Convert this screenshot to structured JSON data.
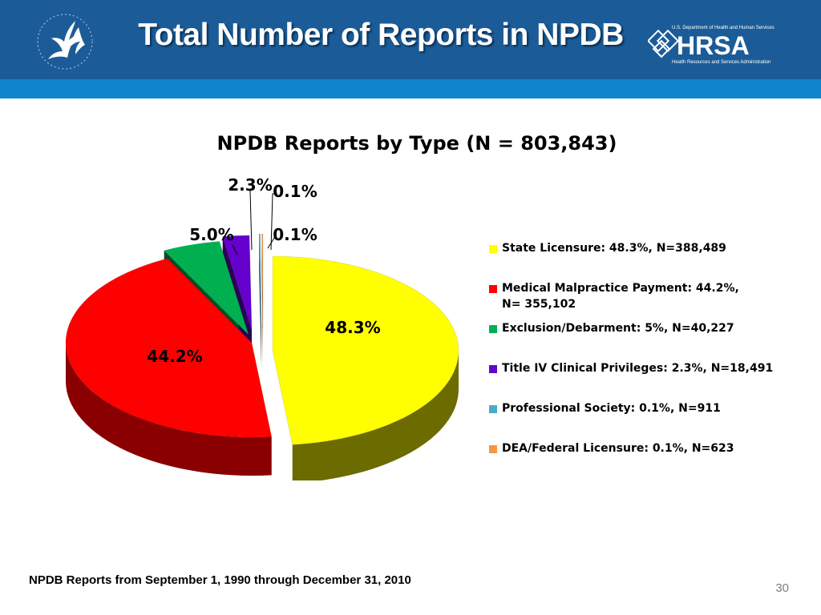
{
  "header": {
    "title": "Total Number of Reports in NPDB",
    "logo_left": "HHS eagle logo",
    "logo_right": {
      "dept": "U.S. Department of Health and Human Services",
      "name": "HRSA",
      "subtitle": "Health Resources and Services Administration"
    },
    "colors": {
      "bar": "#1b5c98",
      "stripe": "#0f85cc"
    }
  },
  "chart_data": {
    "type": "pie",
    "title": "NPDB Reports by Type (N = 803,843)",
    "slices": [
      {
        "label": "State Licensure: 48.3%, N=388,489",
        "value": 48.3,
        "data_label": "48.3%",
        "color": "#ffff00",
        "side": "#6b6b00"
      },
      {
        "label": "Medical Malpractice Payment: 44.2%, N= 355,102",
        "value": 44.2,
        "data_label": "44.2%",
        "color": "#ff0000",
        "side": "#8a0000"
      },
      {
        "label": "Exclusion/Debarment: 5%, N=40,227",
        "value": 5.0,
        "data_label": "5.0%",
        "color": "#00b050",
        "side": "#0a4d25"
      },
      {
        "label": "Title IV Clinical Privileges: 2.3%, N=18,491",
        "value": 2.3,
        "data_label": "2.3%",
        "color": "#6600cc",
        "side": "#2b0057"
      },
      {
        "label": "Professional Society: 0.1%, N=911",
        "value": 0.1,
        "data_label": "0.1%",
        "color": "#4bacc6",
        "side": "#245a68"
      },
      {
        "label": "DEA/Federal Licensure: 0.1%, N=623",
        "value": 0.1,
        "data_label": "0.1%",
        "color": "#f79646",
        "side": "#8a4a16"
      }
    ],
    "legend_position": "right"
  },
  "legend_lines": [
    [
      "State Licensure: 48.3%, N=388,489"
    ],
    [
      "Medical Malpractice Payment: 44.2%,",
      "N= 355,102"
    ],
    [
      "Exclusion/Debarment: 5%, N=40,227"
    ],
    [
      "Title IV Clinical Privileges: 2.3%, N=18,491"
    ],
    [
      "Professional Society: 0.1%, N=911"
    ],
    [
      "DEA/Federal Licensure: 0.1%, N=623"
    ]
  ],
  "footnote": "NPDB Reports from September 1, 1990 through December 31, 2010",
  "page_number": "30"
}
